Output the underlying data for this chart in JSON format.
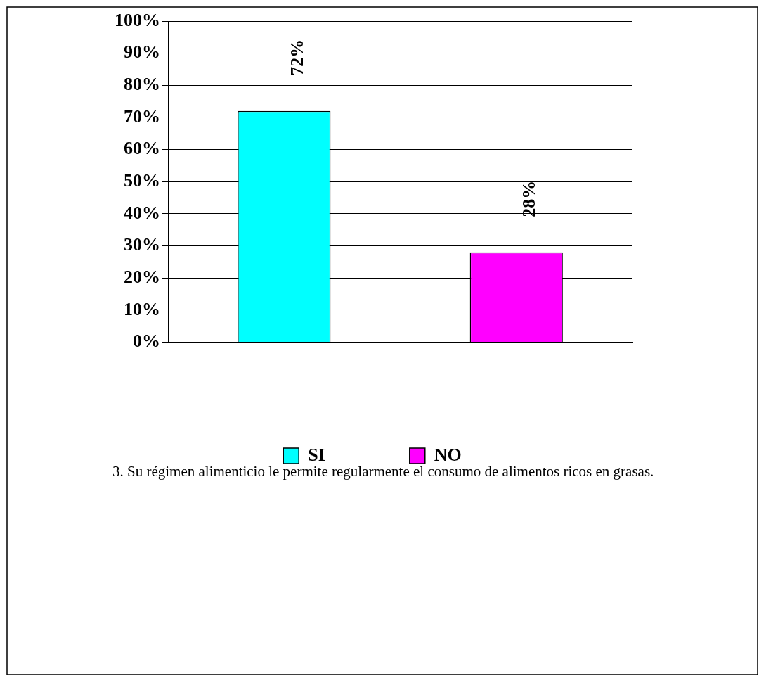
{
  "chart_data": {
    "type": "bar",
    "categories": [
      null,
      null
    ],
    "series": [
      {
        "name": "SI",
        "color": "#00ffff",
        "values": [
          72,
          null
        ]
      },
      {
        "name": "NO",
        "color": "#ff00ff",
        "values": [
          null,
          28
        ]
      }
    ],
    "ylim": [
      0,
      100
    ],
    "yticks": [
      {
        "value": 0,
        "label": "0%"
      },
      {
        "value": 10,
        "label": "10%"
      },
      {
        "value": 20,
        "label": "20%"
      },
      {
        "value": 30,
        "label": "30%"
      },
      {
        "value": 40,
        "label": "40%"
      },
      {
        "value": 50,
        "label": "50%"
      },
      {
        "value": 60,
        "label": "60%"
      },
      {
        "value": 70,
        "label": "70%"
      },
      {
        "value": 80,
        "label": "80%"
      },
      {
        "value": 90,
        "label": "90%"
      },
      {
        "value": 100,
        "label": "100%"
      }
    ],
    "value_labels": [
      "72%",
      "28%"
    ],
    "grid": "y",
    "legend": "bottom",
    "annotations": [
      "3. Su régimen alimenticio le permite regularmente el consumo de alimentos ricos en grasas."
    ]
  }
}
